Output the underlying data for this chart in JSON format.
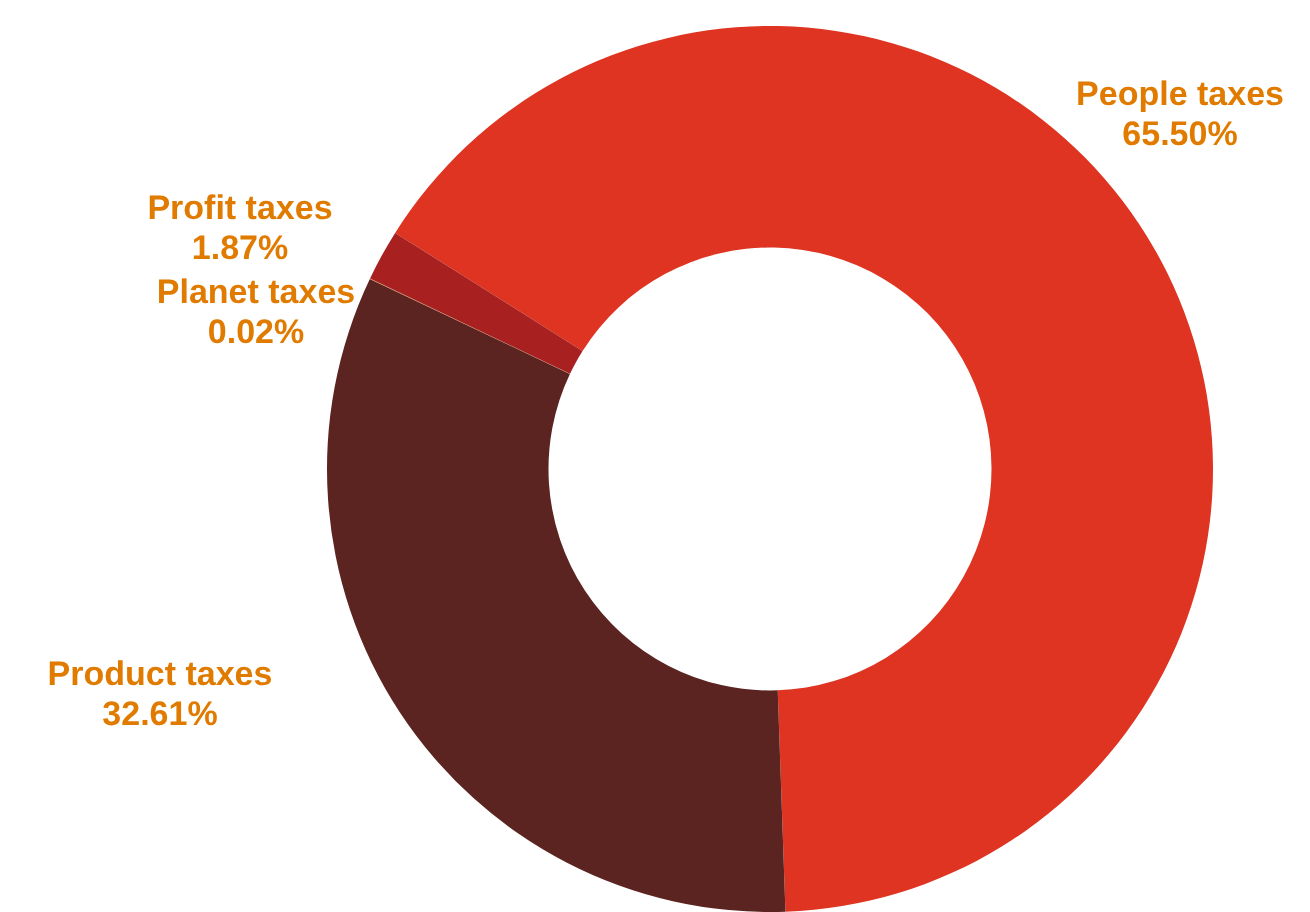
{
  "chart_data": {
    "type": "donut",
    "categories": [
      "People taxes",
      "Product taxes",
      "Planet taxes",
      "Profit taxes"
    ],
    "values": [
      65.5,
      32.61,
      0.02,
      1.87
    ],
    "value_labels": [
      "65.50%",
      "32.61%",
      "0.02%",
      "1.87%"
    ],
    "colors": [
      "#de3421",
      "#5c2420",
      "#d08040",
      "#a8201f"
    ],
    "legend": false
  }
}
